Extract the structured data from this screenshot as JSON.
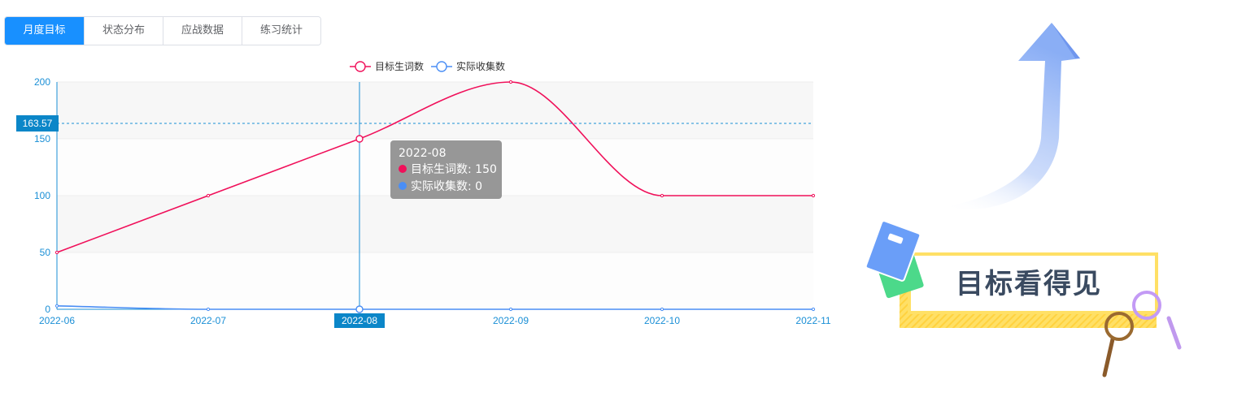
{
  "tabs": [
    {
      "label": "月度目标",
      "active": true
    },
    {
      "label": "状态分布",
      "active": false
    },
    {
      "label": "应战数据",
      "active": false
    },
    {
      "label": "练习统计",
      "active": false
    }
  ],
  "chart_data": {
    "type": "line",
    "x": [
      "2022-06",
      "2022-07",
      "2022-08",
      "2022-09",
      "2022-10",
      "2022-11"
    ],
    "ylim": [
      0,
      200
    ],
    "yticks": [
      0,
      50,
      100,
      150,
      200
    ],
    "grid": true,
    "legend": "top-center",
    "series": [
      {
        "name": "目标生词数",
        "values": [
          50,
          100,
          150,
          200,
          100,
          100
        ],
        "color": "#f0105a",
        "smooth": true
      },
      {
        "name": "实际收集数",
        "values": [
          3,
          0,
          0,
          0,
          0,
          0
        ],
        "color": "#4a8ef5",
        "smooth": true
      }
    ],
    "crosshair": {
      "x_label": "2022-08",
      "y_label": "163.57",
      "y_value": 163.57
    }
  },
  "tooltip": {
    "title": "2022-08",
    "rows": [
      {
        "label": "目标生词数: 150",
        "color": "#f0105a"
      },
      {
        "label": "实际收集数: 0",
        "color": "#4a8ef5"
      }
    ]
  },
  "illustration": {
    "caption": "目标看得见"
  }
}
